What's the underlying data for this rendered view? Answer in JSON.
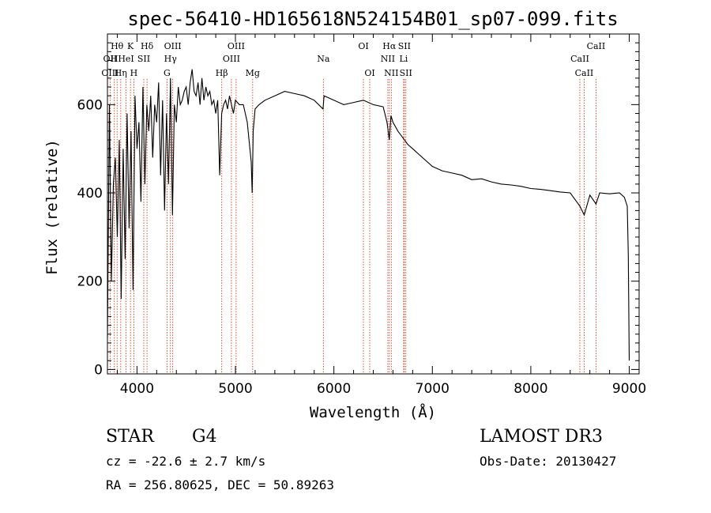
{
  "chart_data": {
    "type": "line",
    "title": "spec-56410-HD165618N524154B01_sp07-099.fits",
    "xlabel": "Wavelength (Å)",
    "ylabel": "Flux (relative)",
    "xlim": [
      3700,
      9100
    ],
    "ylim": [
      -10,
      760
    ],
    "xticks": [
      4000,
      5000,
      6000,
      7000,
      8000,
      9000
    ],
    "yticks": [
      0,
      200,
      400,
      600
    ],
    "series": [
      {
        "name": "flux",
        "x": [
          3700,
          3720,
          3740,
          3760,
          3780,
          3800,
          3820,
          3840,
          3860,
          3880,
          3900,
          3920,
          3940,
          3960,
          3980,
          4000,
          4020,
          4040,
          4060,
          4080,
          4100,
          4120,
          4140,
          4160,
          4180,
          4200,
          4220,
          4240,
          4260,
          4280,
          4300,
          4320,
          4340,
          4360,
          4380,
          4400,
          4420,
          4440,
          4460,
          4480,
          4500,
          4520,
          4540,
          4560,
          4580,
          4600,
          4620,
          4640,
          4660,
          4680,
          4700,
          4720,
          4740,
          4760,
          4780,
          4800,
          4820,
          4840,
          4860,
          4880,
          4900,
          4920,
          4940,
          4960,
          4980,
          5000,
          5040,
          5080,
          5120,
          5160,
          5170,
          5180,
          5200,
          5240,
          5300,
          5400,
          5500,
          5600,
          5700,
          5800,
          5890,
          5900,
          6000,
          6100,
          6200,
          6300,
          6400,
          6500,
          6540,
          6563,
          6580,
          6600,
          6650,
          6700,
          6750,
          6800,
          6900,
          7000,
          7100,
          7200,
          7300,
          7400,
          7500,
          7600,
          7700,
          7800,
          7900,
          8000,
          8100,
          8200,
          8300,
          8400,
          8498,
          8542,
          8600,
          8662,
          8700,
          8800,
          8900,
          8950,
          8980,
          8990,
          9000
        ],
        "y": [
          70,
          600,
          200,
          420,
          480,
          300,
          520,
          160,
          500,
          250,
          580,
          320,
          540,
          180,
          620,
          500,
          560,
          380,
          640,
          420,
          600,
          540,
          620,
          480,
          600,
          560,
          650,
          440,
          610,
          360,
          580,
          420,
          660,
          350,
          600,
          560,
          640,
          600,
          610,
          630,
          640,
          600,
          650,
          680,
          630,
          620,
          650,
          600,
          660,
          610,
          640,
          620,
          630,
          600,
          610,
          580,
          610,
          440,
          580,
          600,
          610,
          590,
          620,
          600,
          580,
          610,
          600,
          600,
          560,
          470,
          400,
          540,
          590,
          600,
          610,
          620,
          630,
          625,
          620,
          610,
          590,
          620,
          610,
          600,
          605,
          610,
          600,
          595,
          560,
          520,
          575,
          560,
          540,
          525,
          510,
          500,
          480,
          460,
          450,
          445,
          440,
          430,
          432,
          425,
          420,
          418,
          415,
          410,
          408,
          405,
          402,
          400,
          370,
          350,
          395,
          375,
          400,
          398,
          400,
          390,
          370,
          260,
          20
        ]
      }
    ],
    "line_labels": [
      {
        "name": "Hθ",
        "x": 3798,
        "row": 1
      },
      {
        "name": "OII",
        "x": 3727,
        "row": 2
      },
      {
        "name": "OIII",
        "x": 3727,
        "row": 3
      },
      {
        "name": "H",
        "x": 3770,
        "row": 2
      },
      {
        "name": "Hη",
        "x": 3835,
        "row": 3
      },
      {
        "name": "K",
        "x": 3934,
        "row": 1
      },
      {
        "name": "HeI",
        "x": 3889,
        "row": 2
      },
      {
        "name": "SII",
        "x": 4069,
        "row": 2
      },
      {
        "name": "H",
        "x": 3968,
        "row": 3
      },
      {
        "name": "Hδ",
        "x": 4102,
        "row": 1
      },
      {
        "name": "OIII",
        "x": 4363,
        "row": 1
      },
      {
        "name": "Hγ",
        "x": 4340,
        "row": 2
      },
      {
        "name": "G",
        "x": 4305,
        "row": 3
      },
      {
        "name": "Hβ",
        "x": 4861,
        "row": 3
      },
      {
        "name": "OIII",
        "x": 5007,
        "row": 1
      },
      {
        "name": "OIII",
        "x": 4959,
        "row": 2
      },
      {
        "name": "Mg",
        "x": 5175,
        "row": 3
      },
      {
        "name": "Na",
        "x": 5893,
        "row": 2
      },
      {
        "name": "OI",
        "x": 6300,
        "row": 1
      },
      {
        "name": "OI",
        "x": 6364,
        "row": 3
      },
      {
        "name": "Hα",
        "x": 6563,
        "row": 1
      },
      {
        "name": "SII",
        "x": 6716,
        "row": 1
      },
      {
        "name": "NII",
        "x": 6548,
        "row": 2
      },
      {
        "name": "Li",
        "x": 6708,
        "row": 2
      },
      {
        "name": "NII",
        "x": 6583,
        "row": 3
      },
      {
        "name": "SII",
        "x": 6731,
        "row": 3
      },
      {
        "name": "CaII",
        "x": 8662,
        "row": 1
      },
      {
        "name": "CaII",
        "x": 8498,
        "row": 2
      },
      {
        "name": "CaII",
        "x": 8542,
        "row": 3
      }
    ]
  },
  "info": {
    "object_type": "STAR",
    "subclass": "G4",
    "survey": "LAMOST DR3",
    "cz": "cz = -22.6 ± 2.7 km/s",
    "obs_date": "Obs-Date: 20130427",
    "coords": "RA = 256.80625, DEC =  50.89263"
  },
  "colors": {
    "line_marker": "#cc2200",
    "spectrum": "#000000"
  }
}
